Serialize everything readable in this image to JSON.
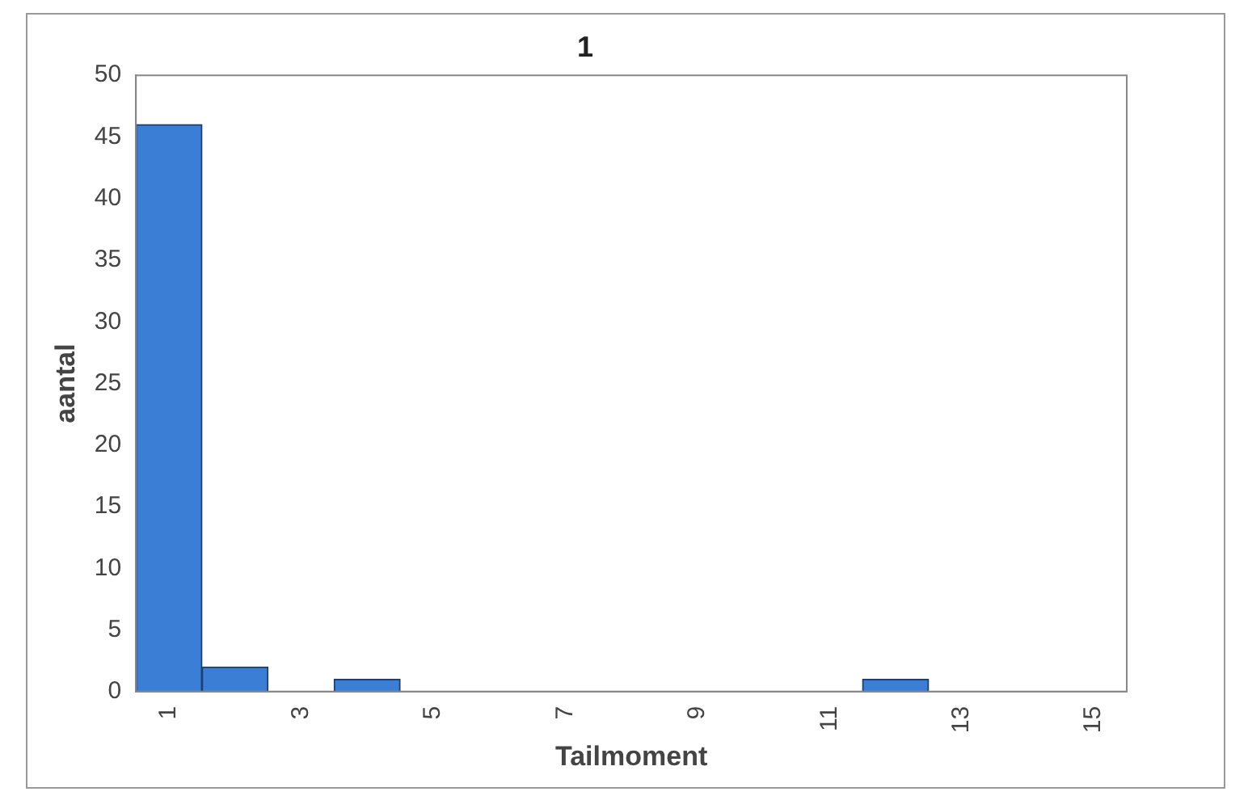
{
  "chart_data": {
    "type": "bar",
    "title": "1",
    "xlabel": "Tailmoment",
    "ylabel": "aantal",
    "categories": [
      "1",
      null,
      "3",
      null,
      "5",
      null,
      "7",
      null,
      "9",
      null,
      "11",
      null,
      "13",
      null,
      "15"
    ],
    "values": [
      46,
      2,
      0,
      1,
      0,
      0,
      0,
      0,
      0,
      0,
      0,
      1,
      0,
      0,
      0
    ],
    "color": "#3a7fd5",
    "ylim": [
      0,
      50
    ],
    "yticks": [
      0,
      5,
      10,
      15,
      20,
      25,
      30,
      35,
      40,
      45,
      50
    ],
    "grid": false,
    "legend": false
  }
}
